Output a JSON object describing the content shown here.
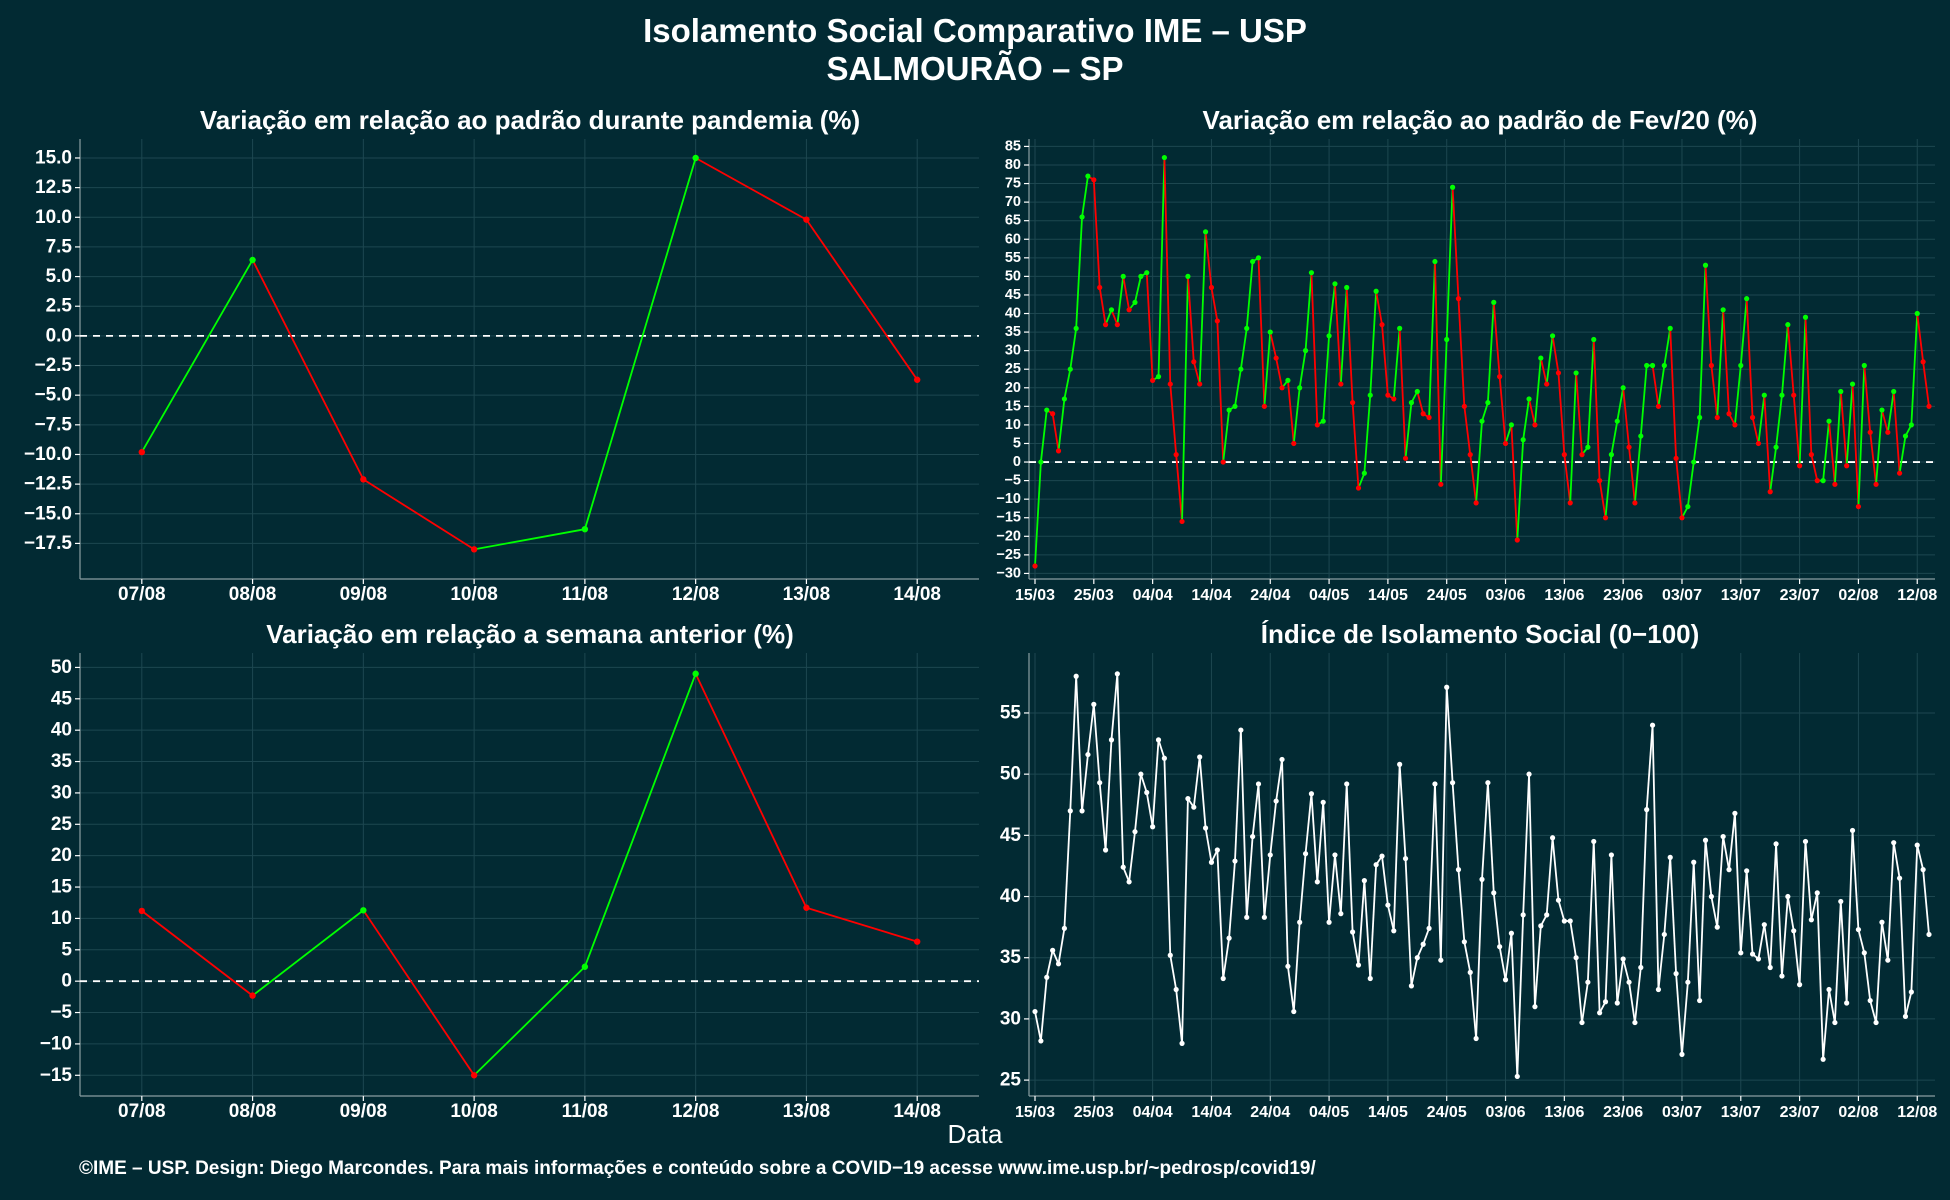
{
  "header": {
    "title": "Isolamento Social Comparativo IME – USP",
    "subtitle": "SALMOURÃO – SP"
  },
  "xlabel": "Data",
  "caption": "©IME – USP. Design: Diego Marcondes. Para mais informações e conteúdo sobre a COVID−19 acesse www.ime.usp.br/~pedrosp/covid19/",
  "colors": {
    "background": "#022a33",
    "up": "#00ff00",
    "down": "#ff0000",
    "index": "#ffffff",
    "grid": "#1d4750",
    "axis": "#8a9ea2"
  },
  "chart_data": [
    {
      "type": "line",
      "title": "Variação em relação ao padrão durante pandemia (%)",
      "xlabel": "Data",
      "categories": [
        "07/08",
        "08/08",
        "09/08",
        "10/08",
        "11/08",
        "12/08",
        "13/08",
        "14/08"
      ],
      "values": [
        -9.8,
        6.4,
        -12.1,
        -18.0,
        -16.3,
        15.0,
        9.8,
        -3.7
      ],
      "ylim": [
        -20.5,
        16.6
      ],
      "yticks": [
        "15.0",
        "12.5",
        "10.0",
        "7.5",
        "5.0",
        "2.5",
        "0.0",
        "−2.5",
        "−5.0",
        "−7.5",
        "−10.0",
        "−12.5",
        "−15.0",
        "−17.5"
      ],
      "ytick_values": [
        15,
        12.5,
        10,
        7.5,
        5,
        2.5,
        0,
        -2.5,
        -5,
        -7.5,
        -10,
        -12.5,
        -15,
        -17.5
      ],
      "reference_line": 0,
      "coloring": "green when increasing, red when decreasing",
      "grid": true
    },
    {
      "type": "line",
      "title": "Variação em relação ao padrão de Fev/20 (%)",
      "xlabel": "Data",
      "x_start": "15/03",
      "x_end": "14/08",
      "xticks": [
        "15/03",
        "25/03",
        "04/04",
        "14/04",
        "24/04",
        "04/05",
        "14/05",
        "24/05",
        "03/06",
        "13/06",
        "23/06",
        "03/07",
        "13/07",
        "23/07",
        "02/08",
        "12/08"
      ],
      "values": [
        -28,
        0,
        14,
        13,
        3,
        17,
        25,
        36,
        66,
        77,
        76,
        47,
        37,
        41,
        37,
        50,
        41,
        43,
        50,
        51,
        22,
        23,
        82,
        21,
        2,
        -16,
        50,
        27,
        21,
        62,
        47,
        38,
        0,
        14,
        15,
        25,
        36,
        54,
        55,
        15,
        35,
        28,
        20,
        22,
        5,
        20,
        30,
        51,
        10,
        11,
        34,
        48,
        21,
        47,
        16,
        -7,
        -3,
        18,
        46,
        37,
        18,
        17,
        36,
        1,
        16,
        19,
        13,
        12,
        54,
        -6,
        33,
        74,
        44,
        15,
        2,
        -11,
        11,
        16,
        43,
        23,
        5,
        10,
        -21,
        6,
        17,
        10,
        28,
        21,
        34,
        24,
        2,
        -11,
        24,
        2,
        4,
        33,
        -5,
        -15,
        2,
        11,
        20,
        4,
        -11,
        7,
        26,
        26,
        15,
        26,
        36,
        1,
        -15,
        -12,
        0,
        12,
        53,
        26,
        12,
        41,
        13,
        10,
        26,
        44,
        12,
        5,
        18,
        -8,
        4,
        18,
        37,
        18,
        -1,
        39,
        2,
        -5,
        -5,
        11,
        -6,
        19,
        -1,
        21,
        -12,
        26,
        8,
        -6,
        14,
        8,
        19,
        -3,
        7,
        10,
        40,
        27,
        15
      ],
      "ylim": [
        -31.5,
        87
      ],
      "yticks": [
        "85",
        "80",
        "75",
        "70",
        "65",
        "60",
        "55",
        "50",
        "45",
        "40",
        "35",
        "30",
        "25",
        "20",
        "15",
        "10",
        "5",
        "0",
        "−5",
        "−10",
        "−15",
        "−20",
        "−25",
        "−30"
      ],
      "ytick_values": [
        85,
        80,
        75,
        70,
        65,
        60,
        55,
        50,
        45,
        40,
        35,
        30,
        25,
        20,
        15,
        10,
        5,
        0,
        -5,
        -10,
        -15,
        -20,
        -25,
        -30
      ],
      "reference_line": 0,
      "coloring": "green when increasing, red when decreasing",
      "grid": true
    },
    {
      "type": "line",
      "title": "Variação em relação a semana anterior (%)",
      "xlabel": "Data",
      "categories": [
        "07/08",
        "08/08",
        "09/08",
        "10/08",
        "11/08",
        "12/08",
        "13/08",
        "14/08"
      ],
      "values": [
        11.2,
        -2.3,
        11.3,
        -15.0,
        2.3,
        49.0,
        11.7,
        6.3
      ],
      "ylim": [
        -18.3,
        52.3
      ],
      "yticks": [
        "50",
        "45",
        "40",
        "35",
        "30",
        "25",
        "20",
        "15",
        "10",
        "5",
        "0",
        "−5",
        "−10",
        "−15"
      ],
      "ytick_values": [
        50,
        45,
        40,
        35,
        30,
        25,
        20,
        15,
        10,
        5,
        0,
        -5,
        -10,
        -15
      ],
      "reference_line": 0,
      "coloring": "green when increasing, red when decreasing",
      "grid": true
    },
    {
      "type": "line",
      "title": "Índice de Isolamento Social (0−100)",
      "xlabel": "Data",
      "x_start": "15/03",
      "x_end": "14/08",
      "xticks": [
        "15/03",
        "25/03",
        "04/04",
        "14/04",
        "24/04",
        "04/05",
        "14/05",
        "24/05",
        "03/06",
        "13/06",
        "23/06",
        "03/07",
        "13/07",
        "23/07",
        "02/08",
        "12/08"
      ],
      "values": [
        30.6,
        28.2,
        33.4,
        35.6,
        34.5,
        37.4,
        47,
        58,
        47,
        51.6,
        55.7,
        49.3,
        43.8,
        52.8,
        58.2,
        42.4,
        41.2,
        45.3,
        50,
        48.5,
        45.7,
        52.8,
        51.3,
        35.2,
        32.4,
        28,
        48,
        47.3,
        51.4,
        45.6,
        42.8,
        43.8,
        33.3,
        36.6,
        42.9,
        53.6,
        38.3,
        44.9,
        49.2,
        38.3,
        43.4,
        47.8,
        51.2,
        34.3,
        30.6,
        37.9,
        43.5,
        48.4,
        41.2,
        47.7,
        37.9,
        43.4,
        38.6,
        49.2,
        37.1,
        34.4,
        41.3,
        33.3,
        42.6,
        43.3,
        39.3,
        37.2,
        50.8,
        43.1,
        32.7,
        35,
        36.1,
        37.4,
        49.2,
        34.8,
        57.1,
        49.3,
        42.2,
        36.3,
        33.8,
        28.4,
        41.4,
        49.3,
        40.3,
        35.9,
        33.2,
        37,
        25.3,
        38.5,
        50,
        31,
        37.6,
        38.5,
        44.8,
        39.7,
        38,
        38,
        35,
        29.7,
        33,
        44.5,
        30.5,
        31.4,
        43.4,
        31.3,
        34.9,
        33,
        29.7,
        34.2,
        47.1,
        54,
        32.4,
        36.9,
        43.2,
        33.7,
        27.1,
        33,
        42.8,
        31.5,
        44.6,
        40,
        37.5,
        44.9,
        42.2,
        46.8,
        35.4,
        42.1,
        35.3,
        34.9,
        37.7,
        34.2,
        44.3,
        33.5,
        40,
        37.2,
        32.8,
        44.5,
        38.1,
        40.3,
        26.7,
        32.4,
        29.7,
        39.6,
        31.3,
        45.4,
        37.3,
        35.4,
        31.5,
        29.7,
        37.9,
        34.8,
        44.4,
        41.5,
        30.2,
        32.2,
        44.2,
        42.2,
        36.9
      ],
      "ylim": [
        23.7,
        59.9
      ],
      "yticks": [
        "55",
        "50",
        "45",
        "40",
        "35",
        "30",
        "25"
      ],
      "ytick_values": [
        55,
        50,
        45,
        40,
        35,
        30,
        25
      ],
      "grid": true
    }
  ]
}
